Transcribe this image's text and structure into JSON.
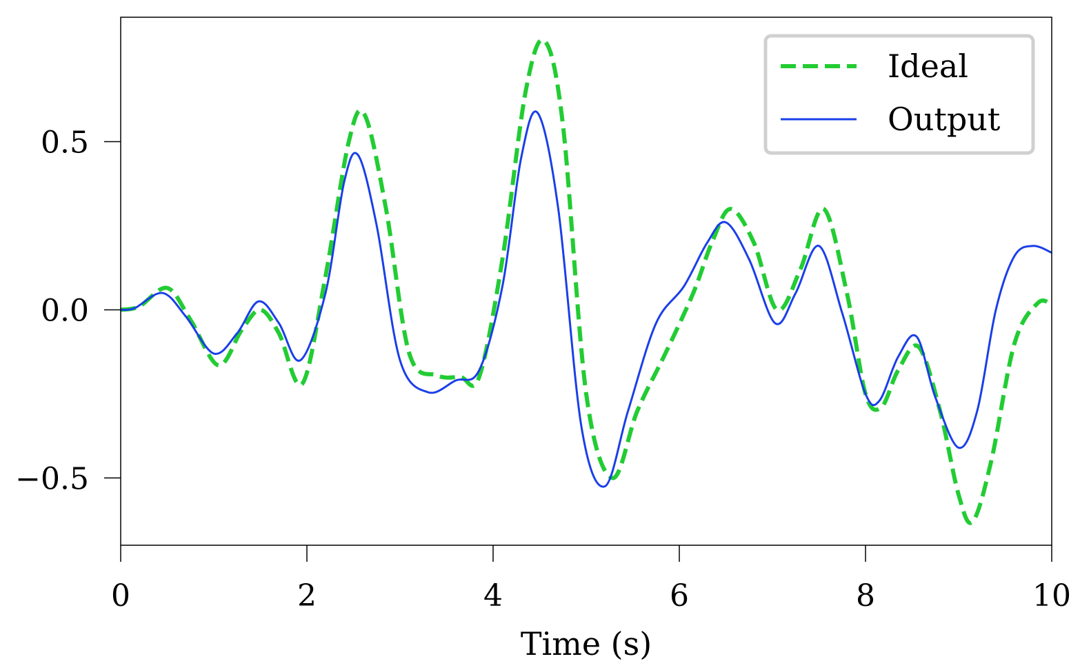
{
  "chart_data": {
    "type": "line",
    "title": "",
    "xlabel": "Time (s)",
    "ylabel": "",
    "xlim": [
      0,
      10
    ],
    "ylim": [
      -0.7,
      0.87
    ],
    "xticks": [
      0,
      2,
      4,
      6,
      8,
      10
    ],
    "xtick_labels": [
      "0",
      "2",
      "4",
      "6",
      "8",
      "10"
    ],
    "yticks": [
      -0.5,
      0.0,
      0.5
    ],
    "ytick_labels": [
      "−0.5",
      "0.0",
      "0.5"
    ],
    "grid": false,
    "legend_position": "top-right",
    "series": [
      {
        "name": "Ideal",
        "color": "#22cc33",
        "style": "dashed",
        "x": [
          0,
          0.2,
          0.5,
          0.75,
          1.05,
          1.3,
          1.5,
          1.7,
          1.95,
          2.2,
          2.45,
          2.62,
          2.85,
          3.1,
          3.4,
          3.65,
          3.85,
          4.1,
          4.35,
          4.55,
          4.75,
          5.0,
          5.28,
          5.55,
          5.85,
          6.15,
          6.35,
          6.55,
          6.8,
          7.05,
          7.3,
          7.55,
          7.8,
          8.0,
          8.17,
          8.35,
          8.57,
          8.8,
          9.0,
          9.15,
          9.35,
          9.6,
          9.85,
          10
        ],
        "values": [
          0,
          0.01,
          0.065,
          -0.03,
          -0.165,
          -0.06,
          0.0,
          -0.07,
          -0.22,
          0.1,
          0.5,
          0.58,
          0.3,
          -0.13,
          -0.195,
          -0.2,
          -0.2,
          0.15,
          0.65,
          0.8,
          0.55,
          -0.25,
          -0.5,
          -0.3,
          -0.13,
          0.05,
          0.2,
          0.3,
          0.2,
          0.0,
          0.12,
          0.3,
          0.05,
          -0.25,
          -0.29,
          -0.18,
          -0.11,
          -0.3,
          -0.55,
          -0.63,
          -0.45,
          -0.1,
          0.02,
          0.015
        ]
      },
      {
        "name": "Output",
        "color": "#1a3fe8",
        "style": "solid",
        "x": [
          0,
          0.15,
          0.45,
          0.7,
          1.0,
          1.25,
          1.48,
          1.7,
          1.93,
          2.2,
          2.4,
          2.55,
          2.75,
          3.0,
          3.3,
          3.6,
          3.85,
          4.1,
          4.3,
          4.48,
          4.7,
          4.95,
          5.2,
          5.45,
          5.75,
          6.05,
          6.3,
          6.5,
          6.75,
          7.03,
          7.25,
          7.5,
          7.75,
          8.0,
          8.15,
          8.35,
          8.55,
          8.75,
          9.0,
          9.2,
          9.4,
          9.6,
          9.8,
          10
        ],
        "values": [
          0,
          0.005,
          0.05,
          -0.02,
          -0.13,
          -0.07,
          0.025,
          -0.04,
          -0.15,
          0.05,
          0.38,
          0.46,
          0.25,
          -0.15,
          -0.245,
          -0.21,
          -0.18,
          0.07,
          0.45,
          0.585,
          0.3,
          -0.35,
          -0.525,
          -0.3,
          -0.04,
          0.07,
          0.2,
          0.26,
          0.15,
          -0.04,
          0.05,
          0.19,
          -0.01,
          -0.25,
          -0.27,
          -0.14,
          -0.08,
          -0.26,
          -0.41,
          -0.3,
          0.0,
          0.16,
          0.19,
          0.17
        ]
      }
    ]
  }
}
